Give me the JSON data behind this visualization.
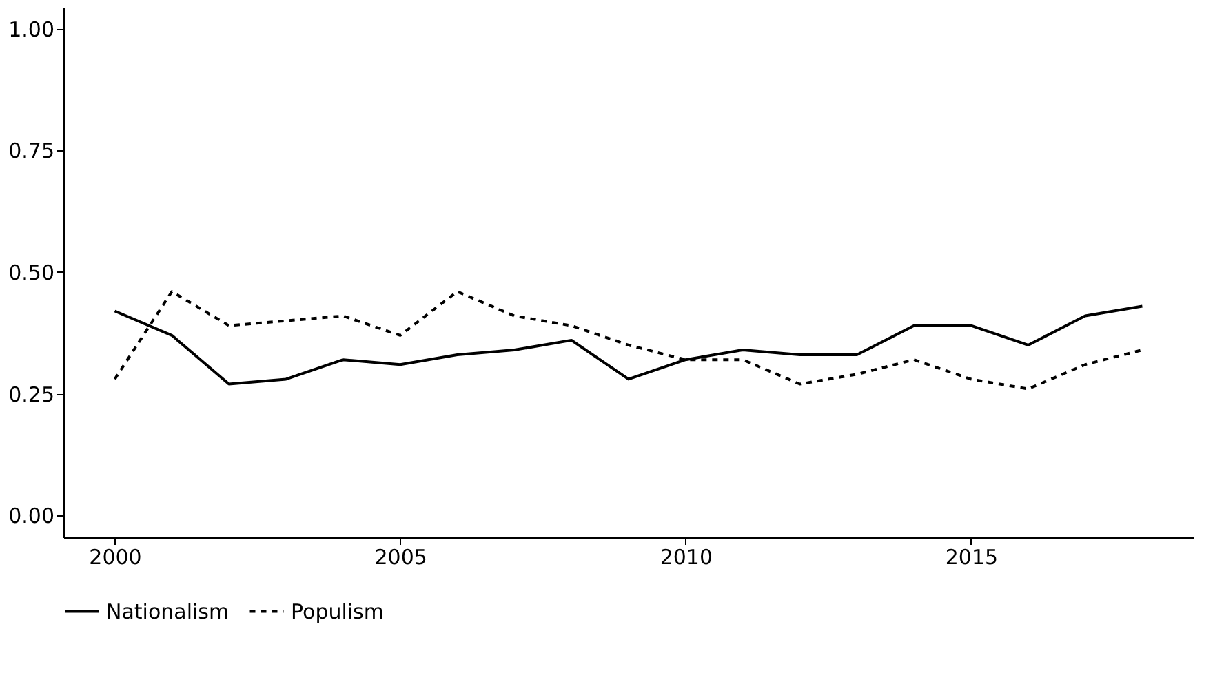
{
  "chart_data": {
    "type": "line",
    "x": [
      2000,
      2001,
      2002,
      2003,
      2004,
      2005,
      2006,
      2007,
      2008,
      2009,
      2010,
      2011,
      2012,
      2013,
      2014,
      2015,
      2016,
      2017,
      2018
    ],
    "series": [
      {
        "name": "Nationalism",
        "color": "#000000",
        "line_style": "solid",
        "values": [
          0.42,
          0.37,
          0.27,
          0.28,
          0.32,
          0.31,
          0.33,
          0.34,
          0.36,
          0.28,
          0.32,
          0.34,
          0.33,
          0.33,
          0.39,
          0.39,
          0.35,
          0.41,
          0.43
        ]
      },
      {
        "name": "Populism",
        "color": "#000000",
        "line_style": "dashed",
        "values": [
          0.28,
          0.46,
          0.39,
          0.4,
          0.41,
          0.37,
          0.46,
          0.41,
          0.39,
          0.35,
          0.32,
          0.32,
          0.27,
          0.29,
          0.32,
          0.28,
          0.26,
          0.31,
          0.34
        ]
      }
    ],
    "xlim": [
      1999.1,
      2018.9
    ],
    "xticks": [
      2000,
      2005,
      2010,
      2015
    ],
    "ylim": [
      -0.045,
      1.045
    ],
    "yticks": [
      {
        "value": 0,
        "label": "0.00"
      },
      {
        "value": 0.25,
        "label": "0.25"
      },
      {
        "value": 0.5,
        "label": "0.50"
      },
      {
        "value": 0.75,
        "label": "0.75"
      },
      {
        "value": 1,
        "label": "1.00"
      }
    ],
    "grid": false,
    "legend": "bottom",
    "marker": "none"
  }
}
